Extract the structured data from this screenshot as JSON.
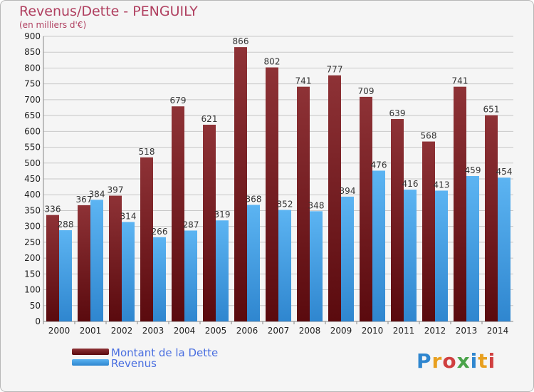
{
  "header": {
    "title": "Revenus/Dette - PENGUILY",
    "subtitle": "(en milliers d'€)"
  },
  "colors": {
    "dette": "#7a1a1e",
    "revenus": "#4aa3e8",
    "grid": "#c8c8c8",
    "axis_text": "#222222"
  },
  "legend": [
    {
      "label": "Montant de la Dette",
      "color": "#7a1a1e"
    },
    {
      "label": "Revenus",
      "color": "#4aa3e8"
    }
  ],
  "logo": {
    "text": "Proxiti"
  },
  "chart_data": {
    "type": "bar",
    "title": "Revenus/Dette - PENGUILY",
    "subtitle": "(en milliers d'€)",
    "categories": [
      "2000",
      "2001",
      "2002",
      "2003",
      "2004",
      "2005",
      "2006",
      "2007",
      "2008",
      "2009",
      "2010",
      "2011",
      "2012",
      "2013",
      "2014"
    ],
    "series": [
      {
        "name": "Montant de la Dette",
        "values": [
          336,
          367,
          397,
          518,
          679,
          621,
          866,
          802,
          741,
          777,
          709,
          639,
          568,
          741,
          651
        ]
      },
      {
        "name": "Revenus",
        "values": [
          288,
          384,
          314,
          266,
          287,
          319,
          368,
          352,
          348,
          394,
          476,
          416,
          413,
          459,
          454
        ]
      }
    ],
    "ylim": [
      0,
      900
    ],
    "yticks": [
      0,
      50,
      100,
      150,
      200,
      250,
      300,
      350,
      400,
      450,
      500,
      550,
      600,
      650,
      700,
      750,
      800,
      850,
      900
    ],
    "grid": true,
    "legend_position": "bottom-left"
  }
}
